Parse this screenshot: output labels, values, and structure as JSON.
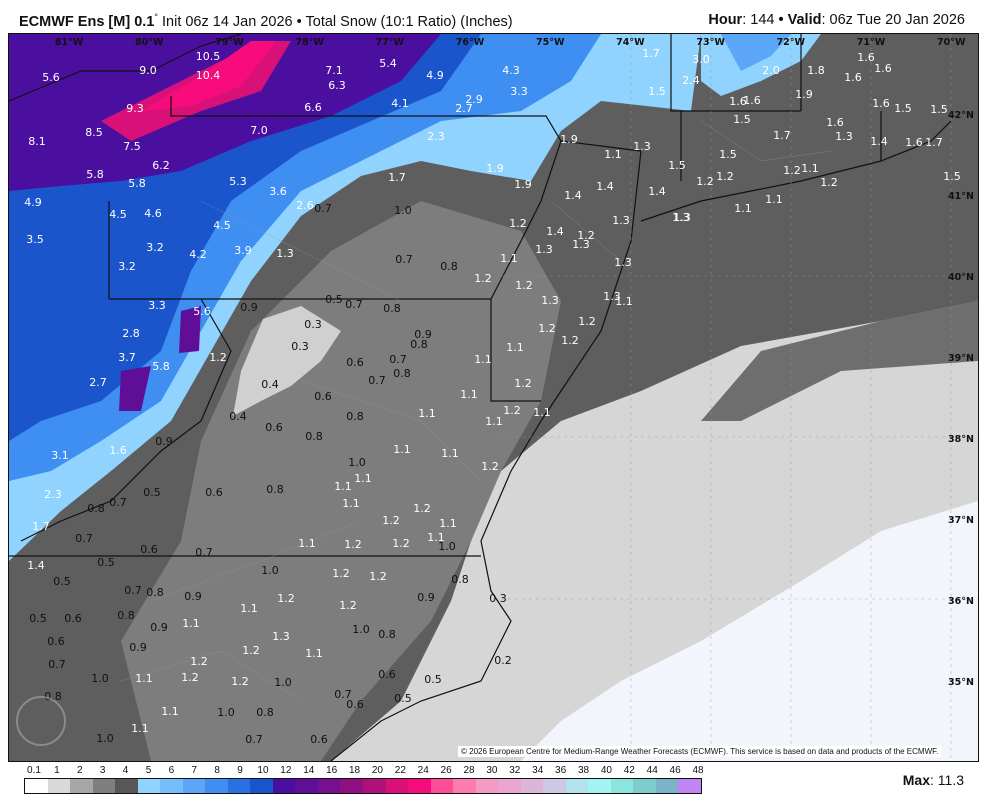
{
  "header": {
    "model": "ECMWF Ens [M]",
    "resolution": "0.1",
    "resolution_unit": "°",
    "init": "Init 06z 14 Jan 2026",
    "separator": "•",
    "product": "Total Snow (10:1 Ratio) (Inches)",
    "hour_label": "Hour",
    "hour": "144",
    "valid_label": "Valid",
    "valid": "06z Tue 20 Jan 2026"
  },
  "map": {
    "longitude_labels": [
      "81°W",
      "80°W",
      "79°W",
      "78°W",
      "77°W",
      "76°W",
      "75°W",
      "74°W",
      "73°W",
      "72°W",
      "71°W",
      "70°W"
    ],
    "latitude_labels": [
      "42°N",
      "41°N",
      "40°N",
      "39°N",
      "38°N",
      "37°N",
      "36°N",
      "35°N"
    ],
    "colors": {
      "land_dark": "#5e5e5e",
      "land_mid": "#7d7d7d",
      "light": "#d6d6d6",
      "lightest": "#f2f5fb",
      "blue": "#3f8ef2",
      "purple": "#4a0f9e",
      "pink": "#f80c7c"
    },
    "values": [
      "5.6",
      "9.0",
      "10.5",
      "10.4",
      "7.1",
      "5.4",
      "6.3",
      "4.9",
      "4.3",
      "3.3",
      "9.3",
      "6.6",
      "4.1",
      "2.9",
      "2.7",
      "8.1",
      "8.5",
      "7.5",
      "7.0",
      "2.3",
      "1.9",
      "1.1",
      "1.3",
      "5.8",
      "6.2",
      "5.8",
      "5.3",
      "3.6",
      "1.9",
      "1.9",
      "1.7",
      "4.9",
      "4.5",
      "4.6",
      "2.6",
      "0.7",
      "1.0",
      "1.4",
      "1.4",
      "1.4",
      "3.5",
      "3.2",
      "4.2",
      "4.5",
      "3.9",
      "1.3",
      "1.2",
      "1.4",
      "1.2",
      "1.3",
      "1.3",
      "3.2",
      "0.7",
      "0.8",
      "1.1",
      "1.2",
      "1.3",
      "1.3",
      "1.3",
      "1.2",
      "3.3",
      "5.6",
      "0.9",
      "0.5",
      "0.7",
      "0.8",
      "1.3",
      "1.3",
      "1.1",
      "0.3",
      "2.8",
      "0.9",
      "1.2",
      "1.2",
      "0.3",
      "0.8",
      "1.1",
      "1.2",
      "3.7",
      "5.8",
      "1.2",
      "0.6",
      "0.7",
      "1.1",
      "0.8",
      "0.7",
      "2.7",
      "0.4",
      "1.2",
      "0.6",
      "1.1",
      "0.8",
      "1.1",
      "1.2",
      "1.1",
      "0.4",
      "0.6",
      "0.8",
      "0.9",
      "1.1",
      "1.1",
      "1.6",
      "3.1",
      "1.0",
      "1.1",
      "1.1",
      "1.1",
      "1.2",
      "0.8",
      "0.5",
      "0.6",
      "2.3",
      "0.7",
      "0.8",
      "1.1",
      "1.2",
      "1.2",
      "1.1",
      "1.7",
      "0.7",
      "1.1",
      "1.2",
      "1.2",
      "1.1",
      "1.0",
      "0.6",
      "0.7",
      "1.4",
      "0.5",
      "1.0",
      "1.2",
      "1.2",
      "0.5",
      "0.7",
      "0.8",
      "0.9",
      "0.8",
      "1.2",
      "0.9",
      "0.3",
      "0.5",
      "0.6",
      "0.8",
      "1.1",
      "1.2",
      "0.6",
      "0.9",
      "1.1",
      "1.3",
      "1.0",
      "0.8",
      "0.9",
      "1.2",
      "1.1",
      "0.7",
      "1.2",
      "0.6",
      "0.5",
      "0.2",
      "1.0",
      "1.1",
      "1.2",
      "1.2",
      "1.0",
      "0.8",
      "0.7",
      "0.6",
      "0.5",
      "1.1",
      "1.0",
      "0.8",
      "1.1",
      "1.0",
      "0.7",
      "0.6",
      "1.7",
      "3.0",
      "2.4",
      "2.0",
      "1.8",
      "1.6",
      "1.6",
      "1.6",
      "1.5",
      "1.9",
      "1.6",
      "1.6",
      "1.6",
      "1.5",
      "1.5",
      "1.5",
      "1.6",
      "1.7",
      "1.3",
      "1.4",
      "1.6",
      "1.7",
      "1.5",
      "1.5",
      "1.2",
      "1.2",
      "1.2",
      "1.1",
      "1.2",
      "1.5",
      "1.1",
      "1.1",
      "1.3"
    ]
  },
  "copyright": "© 2026 European Centre for Medium-Range Weather Forecasts (ECMWF). This service is based on data and products of the ECMWF.",
  "colorbar": {
    "labels": [
      "0.1",
      "1",
      "2",
      "3",
      "4",
      "5",
      "6",
      "7",
      "8",
      "9",
      "10",
      "12",
      "14",
      "16",
      "18",
      "20",
      "22",
      "24",
      "26",
      "28",
      "30",
      "32",
      "34",
      "36",
      "38",
      "40",
      "42",
      "44",
      "46",
      "48"
    ],
    "colors": [
      "#ffffff",
      "#d9d9d9",
      "#a6a6a6",
      "#7f7f7f",
      "#575757",
      "#8fd3fe",
      "#76bdfb",
      "#5ba6f7",
      "#3f8ef2",
      "#2a6fe4",
      "#1a55cc",
      "#4a0f9e",
      "#5f0e98",
      "#77108e",
      "#8f1080",
      "#b0107a",
      "#d81078",
      "#f80c7c",
      "#fe4d96",
      "#fe7bb0",
      "#f49bc4",
      "#eaa6cf",
      "#dcb6d9",
      "#cdc9e4",
      "#b3e1ee",
      "#a3f3f3",
      "#8ae5dc",
      "#7fcccc",
      "#7db3c8",
      "#c184f4"
    ],
    "max_label": "Max",
    "max_value": "11.3"
  }
}
